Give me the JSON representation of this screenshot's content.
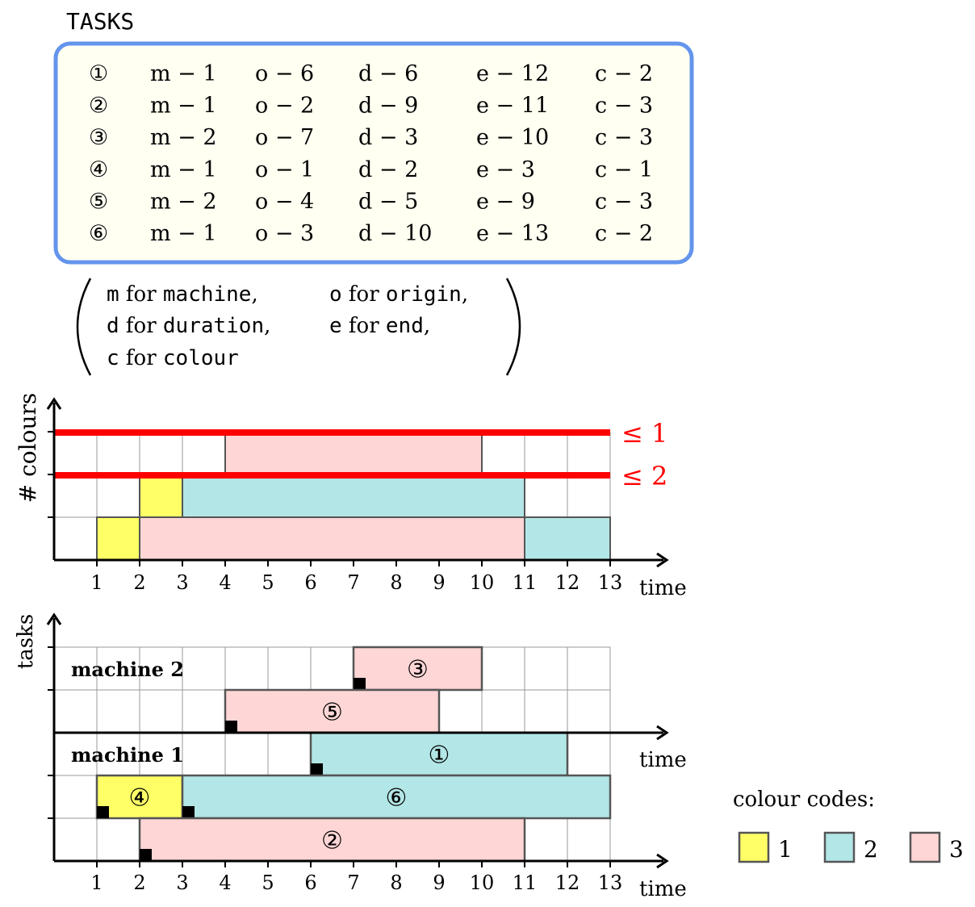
{
  "tasks_title": "TASKS",
  "task_table": {
    "rows": [
      {
        "id": "①",
        "m": "m − 1",
        "o": "o − 6",
        "d": "d − 6",
        "e": "e − 12",
        "c": "c − 2"
      },
      {
        "id": "②",
        "m": "m − 1",
        "o": "o − 2",
        "d": "d − 9",
        "e": "e − 11",
        "c": "c − 3"
      },
      {
        "id": "③",
        "m": "m − 2",
        "o": "o − 7",
        "d": "d − 3",
        "e": "e − 10",
        "c": "c − 3"
      },
      {
        "id": "④",
        "m": "m − 1",
        "o": "o − 1",
        "d": "d − 2",
        "e": "e − 3",
        "c": "c − 1"
      },
      {
        "id": "⑤",
        "m": "m − 2",
        "o": "o − 4",
        "d": "d − 5",
        "e": "e − 9",
        "c": "c − 3"
      },
      {
        "id": "⑥",
        "m": "m − 1",
        "o": "o − 3",
        "d": "d − 10",
        "e": "e − 13",
        "c": "c − 2"
      }
    ]
  },
  "legend_note": {
    "line1a": {
      "key": "m",
      "text": " for ",
      "word": "machine",
      "tail": ","
    },
    "line1b": {
      "key": "o",
      "text": " for ",
      "word": "origin",
      "tail": ","
    },
    "line2a": {
      "key": "d",
      "text": " for ",
      "word": "duration",
      "tail": ","
    },
    "line2b": {
      "key": "e",
      "text": " for ",
      "word": "end",
      "tail": ","
    },
    "line3a": {
      "key": "c",
      "text": " for ",
      "word": "colour",
      "tail": ""
    }
  },
  "colour_chart": {
    "ylabel": "# colours",
    "xlabel": "time",
    "limits": [
      {
        "label": "≤ 1",
        "level": 3
      },
      {
        "label": "≤ 2",
        "level": 2
      }
    ],
    "ticks": [
      "1",
      "2",
      "3",
      "4",
      "5",
      "6",
      "7",
      "8",
      "9",
      "10",
      "11",
      "12",
      "13"
    ],
    "rects": [
      {
        "x0": 1,
        "x1": 2,
        "row": 0,
        "colour": 1
      },
      {
        "x0": 2,
        "x1": 11,
        "row": 0,
        "colour": 3
      },
      {
        "x0": 11,
        "x1": 13,
        "row": 0,
        "colour": 2
      },
      {
        "x0": 2,
        "x1": 3,
        "row": 1,
        "colour": 1
      },
      {
        "x0": 3,
        "x1": 11,
        "row": 1,
        "colour": 2
      },
      {
        "x0": 4,
        "x1": 10,
        "row": 2,
        "colour": 3
      }
    ]
  },
  "task_chart": {
    "ylabel": "tasks",
    "xlabel_top": "time",
    "xlabel_bottom": "time",
    "machine1_label": "machine 1",
    "machine2_label": "machine 2",
    "ticks": [
      "1",
      "2",
      "3",
      "4",
      "5",
      "6",
      "7",
      "8",
      "9",
      "10",
      "11",
      "12",
      "13"
    ],
    "machine2_tasks": [
      {
        "id": "③",
        "x0": 7,
        "x1": 10,
        "row": 1,
        "colour": 3
      },
      {
        "id": "⑤",
        "x0": 4,
        "x1": 9,
        "row": 0,
        "colour": 3
      }
    ],
    "machine1_tasks": [
      {
        "id": "①",
        "x0": 6,
        "x1": 12,
        "row": 2,
        "colour": 2
      },
      {
        "id": "④",
        "x0": 1,
        "x1": 3,
        "row": 1,
        "colour": 1
      },
      {
        "id": "⑥",
        "x0": 3,
        "x1": 13,
        "row": 1,
        "colour": 2
      },
      {
        "id": "②",
        "x0": 2,
        "x1": 11,
        "row": 0,
        "colour": 3
      }
    ]
  },
  "colour_codes": {
    "title": "colour codes:",
    "items": [
      {
        "label": "1",
        "color": "#ffff66"
      },
      {
        "label": "2",
        "color": "#b3e6e6"
      },
      {
        "label": "3",
        "color": "#ffd6d6"
      }
    ]
  },
  "palette": {
    "c1": "#ffff66",
    "c2": "#b3e6e6",
    "c3": "#ffd6d6",
    "limit": "#ff0000",
    "box_border": "#6495ed",
    "box_fill": "#fffff2"
  }
}
